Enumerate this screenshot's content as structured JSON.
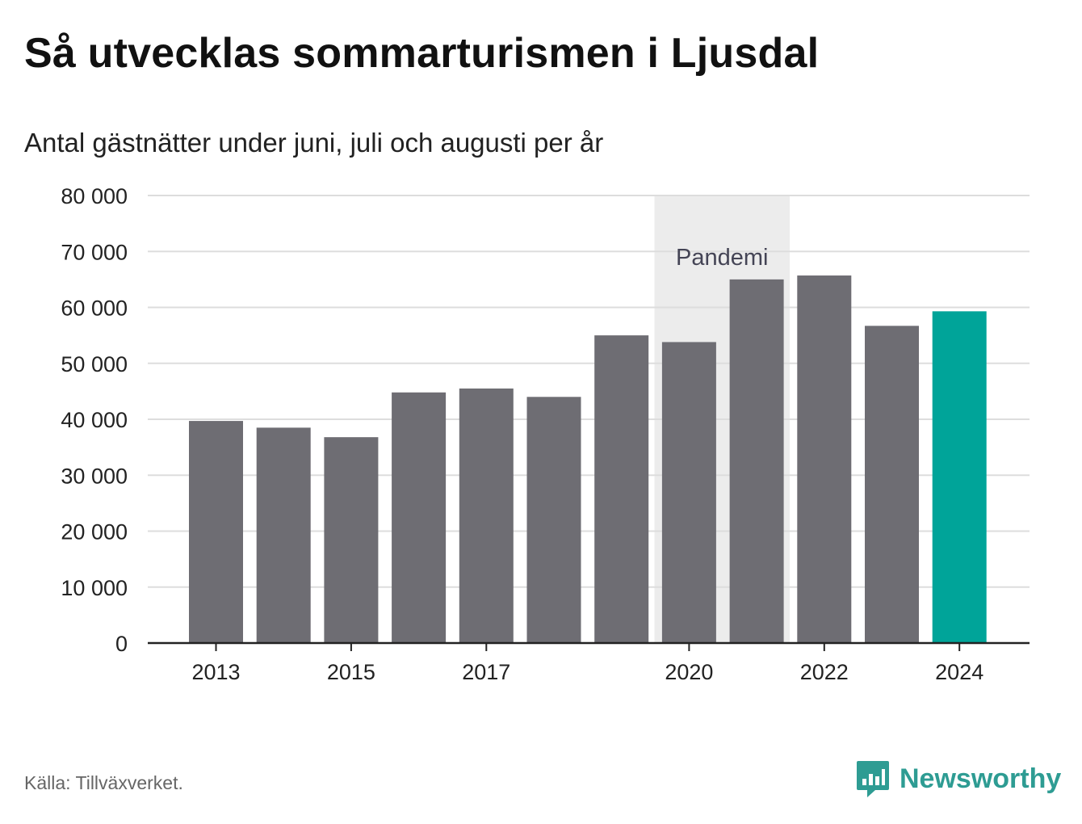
{
  "header": {
    "title": "Så utvecklas sommarturismen i Ljusdal",
    "subtitle": "Antal gästnätter under juni, juli och augusti per år"
  },
  "footer": {
    "source": "Källa: Tillväxverket.",
    "brand": "Newsworthy"
  },
  "colors": {
    "bar": "#6e6d73",
    "highlight": "#00a499",
    "shade": "#ececec",
    "grid": "#dddddd",
    "axis": "#222222",
    "brand": "#2e9c93"
  },
  "icons": {
    "logo": "bar-chart-speech-bubble-icon"
  },
  "chart_data": {
    "type": "bar",
    "title": "Så utvecklas sommarturismen i Ljusdal",
    "subtitle": "Antal gästnätter under juni, juli och augusti per år",
    "xlabel": "",
    "ylabel": "",
    "categories": [
      "2013",
      "2014",
      "2015",
      "2016",
      "2017",
      "2018",
      "2019",
      "2020",
      "2021",
      "2022",
      "2023",
      "2024"
    ],
    "values": [
      39700,
      38500,
      36800,
      44800,
      45500,
      44000,
      55000,
      53800,
      65000,
      65700,
      56700,
      59300
    ],
    "highlight_category": "2024",
    "ylim": [
      0,
      80000
    ],
    "yticks": [
      0,
      10000,
      20000,
      30000,
      40000,
      50000,
      60000,
      70000,
      80000
    ],
    "ytick_labels": [
      "0",
      "10 000",
      "20 000",
      "30 000",
      "40 000",
      "50 000",
      "60 000",
      "70 000",
      "80 000"
    ],
    "xtick_labels": [
      "2013",
      "2015",
      "2017",
      "2020",
      "2022",
      "2024"
    ],
    "grid": true,
    "legend": "none",
    "annotation": {
      "label": "Pandemi",
      "x_start": "2020",
      "x_end": "2021"
    }
  }
}
